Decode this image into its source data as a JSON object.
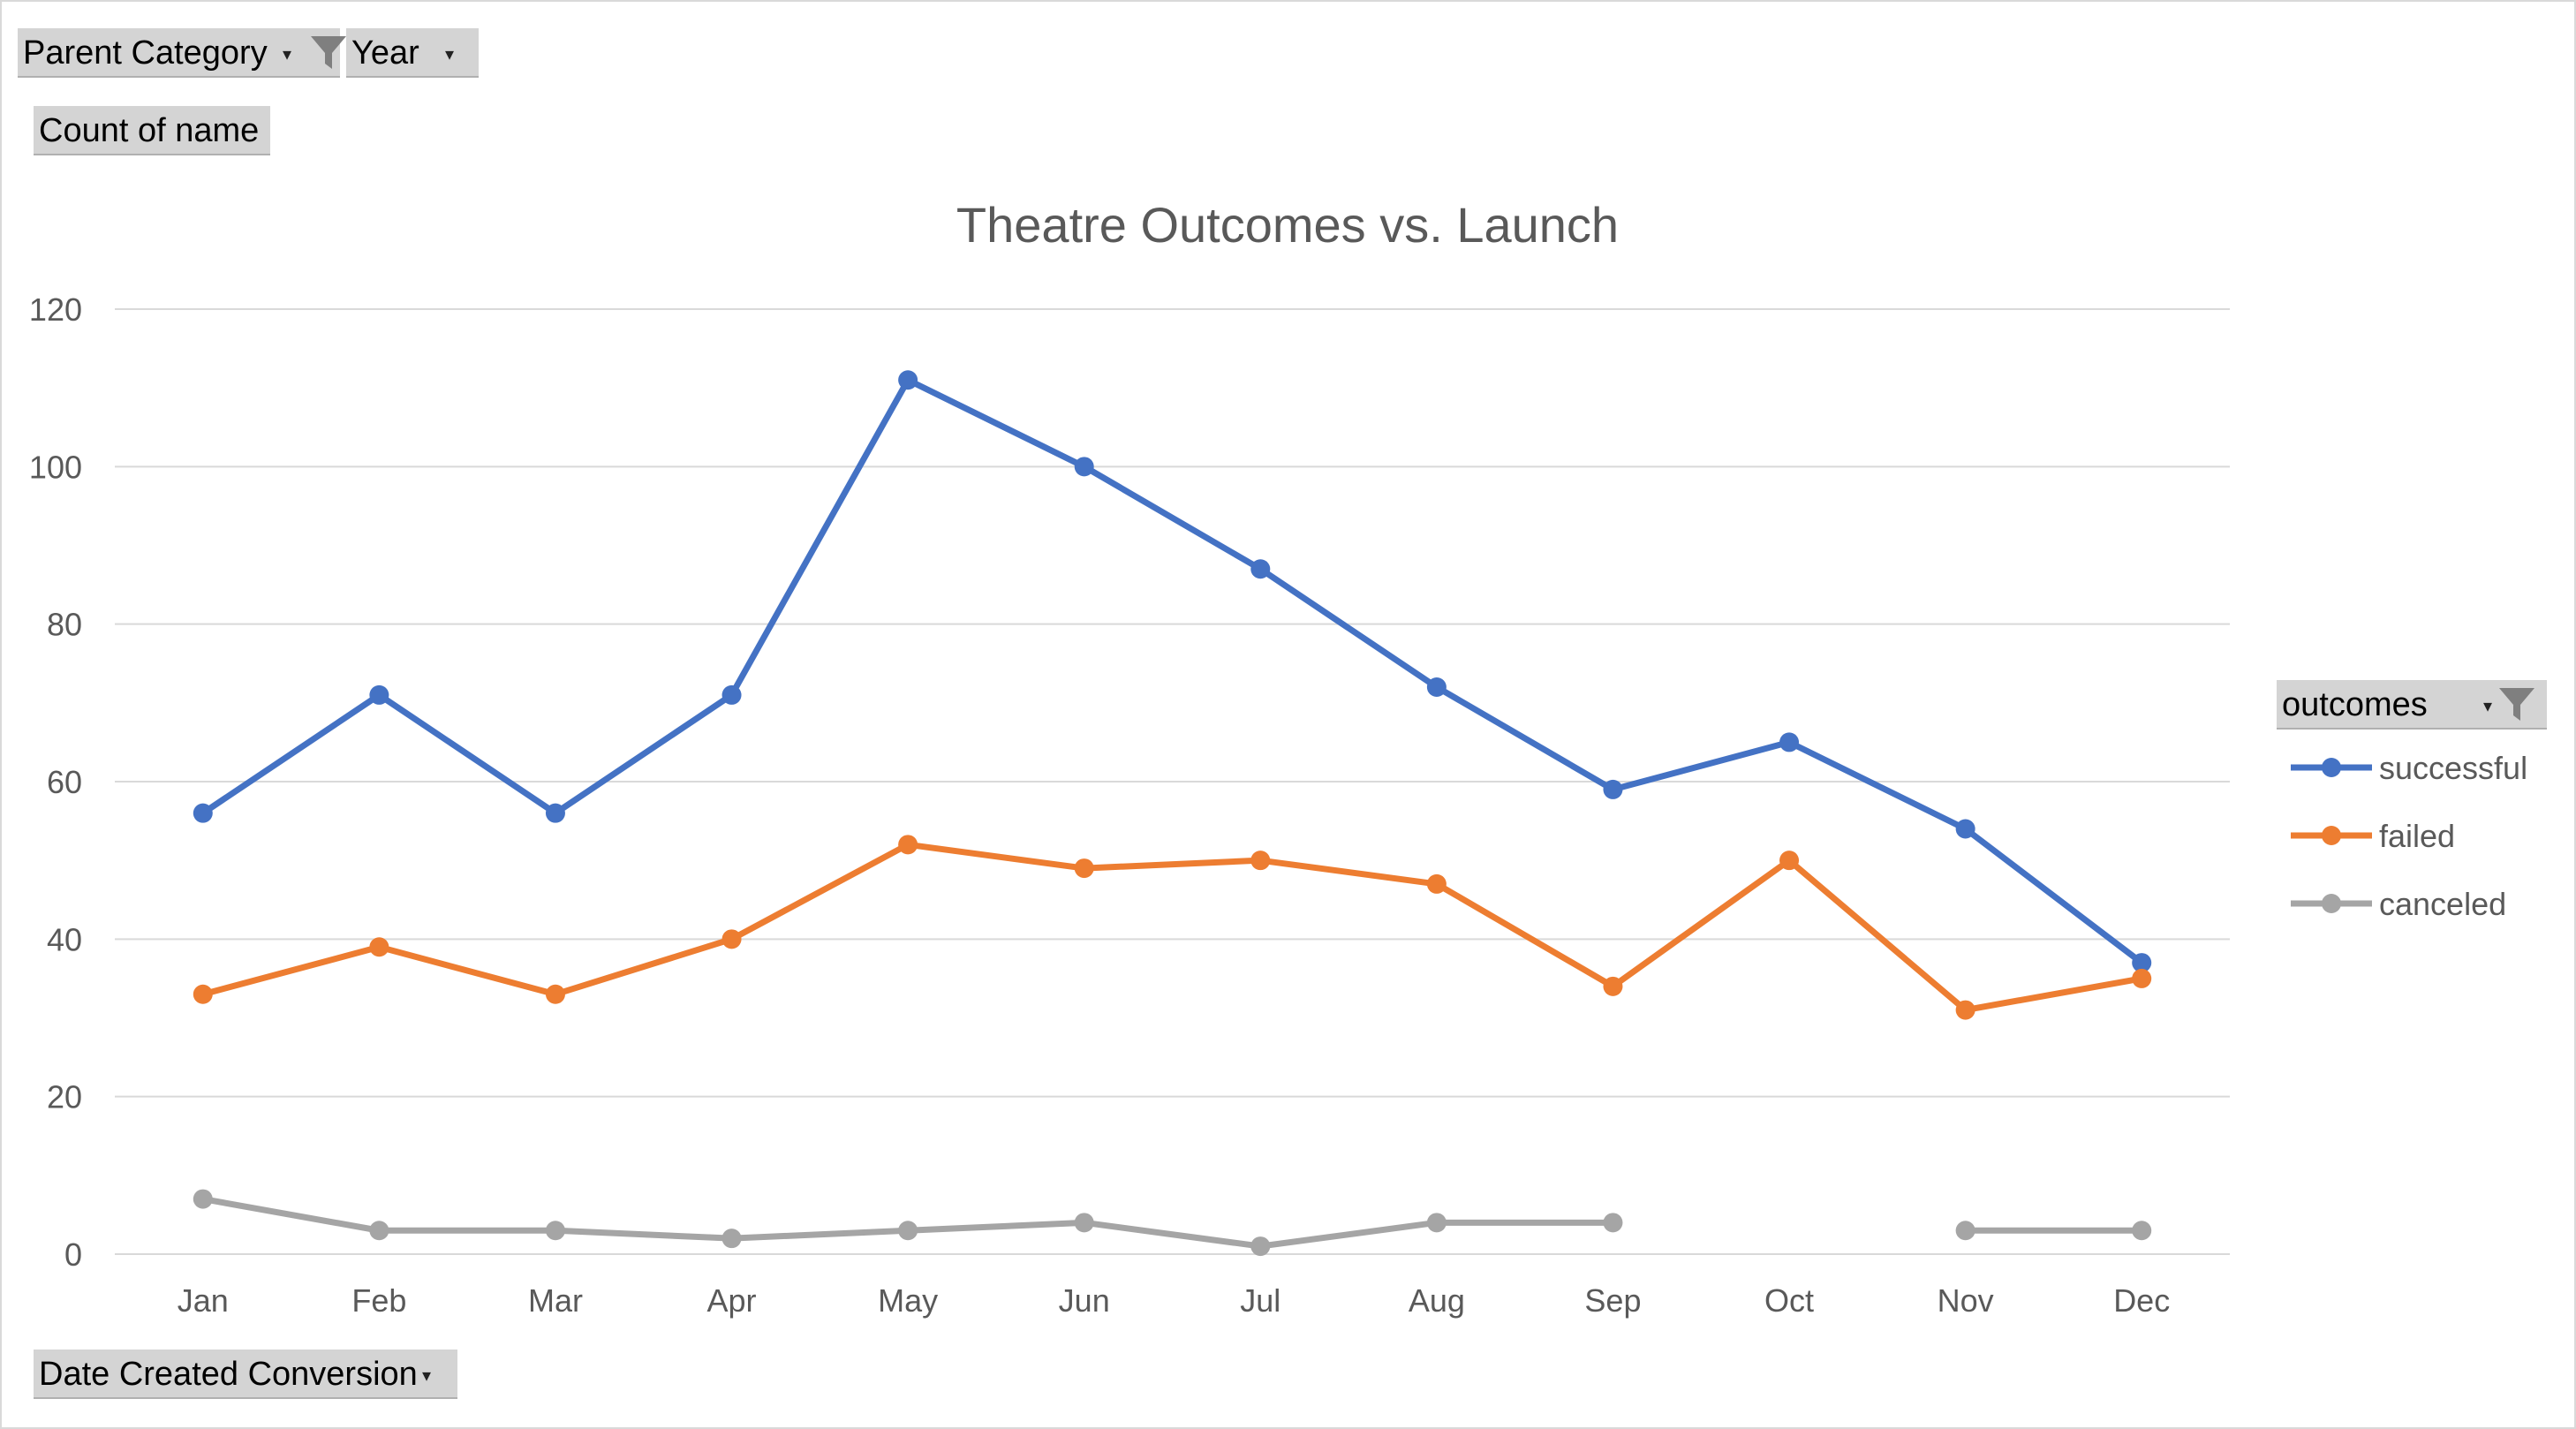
{
  "filters": {
    "parent_category_label": "Parent Category",
    "year_label": "Year",
    "value_field_label": "Count of name",
    "axis_field_label": "Date Created Conversion",
    "legend_field_label": "outcomes"
  },
  "icons": {
    "filter": "funnel-icon",
    "dropdown": "caret-down-icon"
  },
  "chart_data": {
    "type": "line",
    "title": "Theatre Outcomes vs. Launch",
    "xlabel": "",
    "ylabel": "",
    "categories": [
      "Jan",
      "Feb",
      "Mar",
      "Apr",
      "May",
      "Jun",
      "Jul",
      "Aug",
      "Sep",
      "Oct",
      "Nov",
      "Dec"
    ],
    "ylim": [
      0,
      120
    ],
    "yticks": [
      0,
      20,
      40,
      60,
      80,
      100,
      120
    ],
    "grid": true,
    "legend_position": "right",
    "series": [
      {
        "name": "successful",
        "color": "#4472C4",
        "values": [
          56,
          71,
          56,
          71,
          111,
          100,
          87,
          72,
          59,
          65,
          54,
          37
        ]
      },
      {
        "name": "failed",
        "color": "#ED7D31",
        "values": [
          33,
          39,
          33,
          40,
          52,
          49,
          50,
          47,
          34,
          50,
          31,
          35
        ]
      },
      {
        "name": "canceled",
        "color": "#A5A5A5",
        "values": [
          7,
          3,
          3,
          2,
          3,
          4,
          1,
          4,
          4,
          null,
          3,
          3
        ]
      }
    ]
  }
}
